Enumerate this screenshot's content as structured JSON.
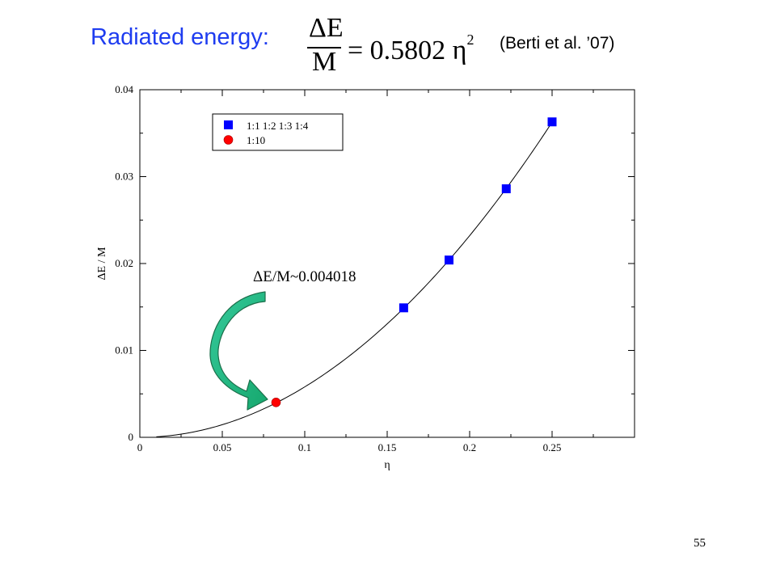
{
  "slide": {
    "title": "Radiated energy:",
    "formula": {
      "numerator": "ΔE",
      "denominator": "M",
      "rhs": "= 0.5802 η",
      "exponent": "2"
    },
    "citation": "(Berti et al. ’07)",
    "page_number": "55"
  },
  "chart_data": {
    "type": "scatter",
    "xlabel": "η",
    "ylabel": "ΔE / M",
    "xlim": [
      0,
      0.3
    ],
    "ylim": [
      0,
      0.04
    ],
    "x_ticks": [
      "0",
      "0.05",
      "0.1",
      "0.15",
      "0.2",
      "0.25"
    ],
    "y_ticks": [
      "0",
      "0.01",
      "0.02",
      "0.03",
      "0.04"
    ],
    "grid": false,
    "legend_position": "top-left",
    "series": [
      {
        "name": "1:1 1:2 1:3 1:4",
        "marker": "square",
        "color": "#0000ff",
        "x": [
          0.16,
          0.1875,
          0.2222,
          0.25
        ],
        "y": [
          0.0149,
          0.0204,
          0.0286,
          0.0363
        ]
      },
      {
        "name": "1:10",
        "marker": "circle",
        "color": "#ff0000",
        "x": [
          0.0826
        ],
        "y": [
          0.004018
        ]
      }
    ],
    "fit_curve": {
      "coefficient": 0.5802,
      "exponent": 2,
      "x_range": [
        0.01,
        0.25
      ],
      "color": "#000000"
    },
    "annotation": {
      "text": "ΔE/M~0.004018",
      "arrow_color": "#2ec08a",
      "arrow_edge_color": "#1b6e4a"
    }
  }
}
